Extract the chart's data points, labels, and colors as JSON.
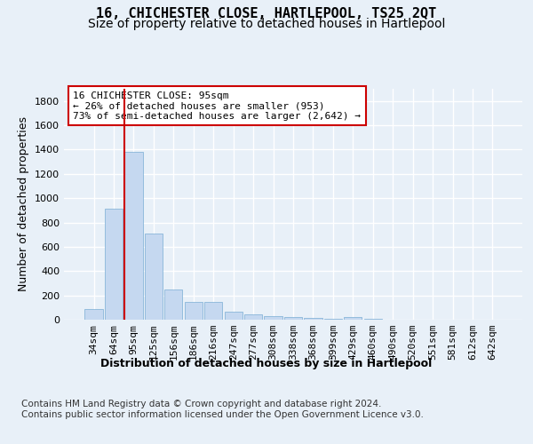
{
  "title": "16, CHICHESTER CLOSE, HARTLEPOOL, TS25 2QT",
  "subtitle": "Size of property relative to detached houses in Hartlepool",
  "xlabel": "Distribution of detached houses by size in Hartlepool",
  "ylabel": "Number of detached properties",
  "categories": [
    "34sqm",
    "64sqm",
    "95sqm",
    "125sqm",
    "156sqm",
    "186sqm",
    "216sqm",
    "247sqm",
    "277sqm",
    "308sqm",
    "338sqm",
    "368sqm",
    "399sqm",
    "429sqm",
    "460sqm",
    "490sqm",
    "520sqm",
    "551sqm",
    "581sqm",
    "612sqm",
    "642sqm"
  ],
  "values": [
    90,
    910,
    1380,
    710,
    250,
    145,
    145,
    65,
    42,
    30,
    25,
    15,
    5,
    20,
    5,
    0,
    0,
    0,
    0,
    0,
    0
  ],
  "bar_color": "#c5d8f0",
  "bar_edge_color": "#7aadd4",
  "highlight_bar_index": 2,
  "vline_color": "#cc0000",
  "annotation_text": "16 CHICHESTER CLOSE: 95sqm\n← 26% of detached houses are smaller (953)\n73% of semi-detached houses are larger (2,642) →",
  "annotation_box_color": "#ffffff",
  "annotation_box_edge_color": "#cc0000",
  "ylim": [
    0,
    1900
  ],
  "yticks": [
    0,
    200,
    400,
    600,
    800,
    1000,
    1200,
    1400,
    1600,
    1800
  ],
  "footer_text": "Contains HM Land Registry data © Crown copyright and database right 2024.\nContains public sector information licensed under the Open Government Licence v3.0.",
  "bg_color": "#e8f0f8",
  "plot_bg_color": "#e8f0f8",
  "grid_color": "#ffffff",
  "title_fontsize": 11,
  "subtitle_fontsize": 10,
  "axis_label_fontsize": 9,
  "tick_fontsize": 8,
  "footer_fontsize": 7.5,
  "annotation_fontsize": 8
}
